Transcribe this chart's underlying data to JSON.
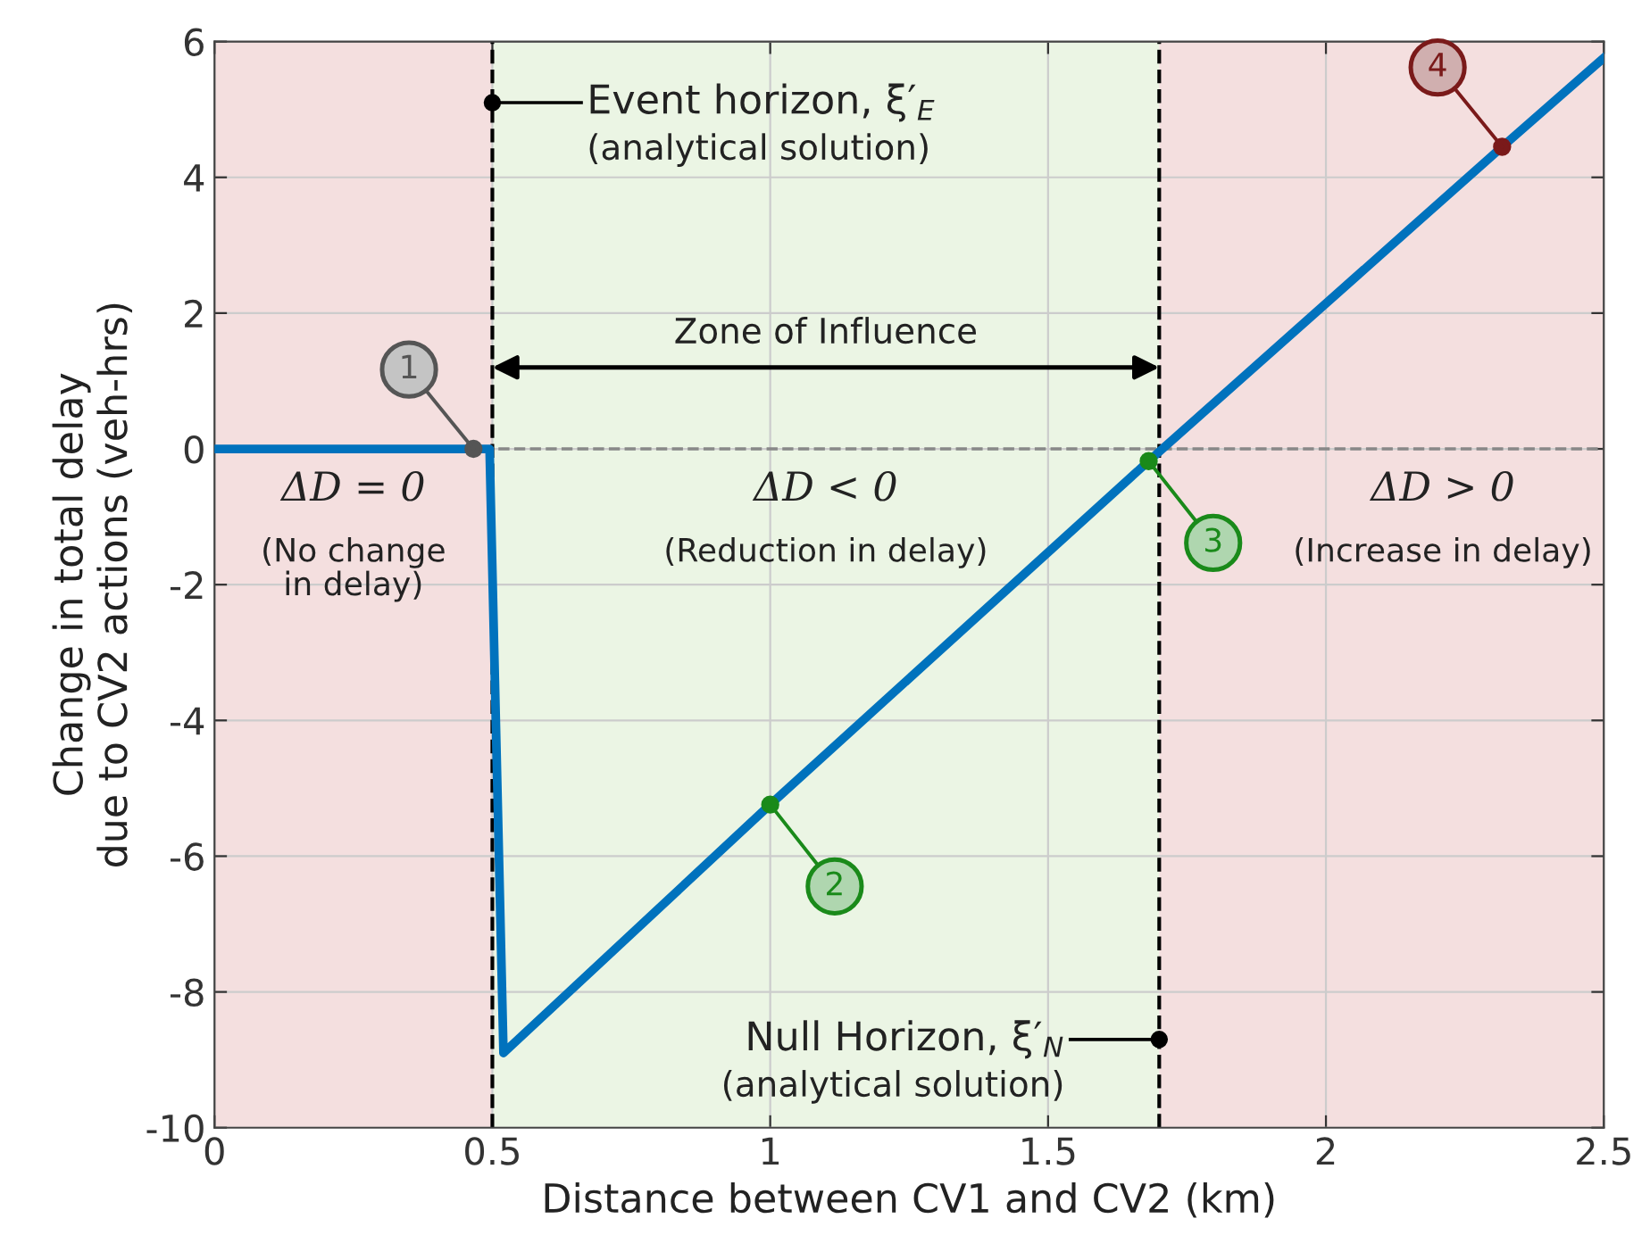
{
  "chart_data": {
    "type": "line",
    "xlabel": "Distance between CV1 and CV2 (km)",
    "ylabel": "Change in total delay\ndue to CV2 actions (veh-hrs)",
    "x": [
      0,
      0.49,
      0.495,
      0.52,
      1,
      1.681,
      2.317,
      2.5
    ],
    "series": [
      {
        "color": "#0072bd",
        "values": [
          0,
          0,
          0,
          -8.9,
          -5.24,
          -0.18,
          4.45,
          5.76
        ]
      },
      {
        "type": "scatter",
        "x": [
          0.466,
          1,
          1.681,
          2.317
        ],
        "values": [
          0,
          -5.24,
          -0.18,
          4.45
        ],
        "colors": [
          "#555555",
          "#1a8a1a",
          "#1a8a1a",
          "#7a1a1a"
        ]
      }
    ],
    "xlim": [
      0,
      2.5
    ],
    "ylim": [
      -10,
      6
    ],
    "xticks": [
      0,
      0.5,
      1,
      1.5,
      2,
      2.5
    ],
    "yticks": [
      -10,
      -8,
      -6,
      -4,
      -2,
      0,
      2,
      4,
      6
    ],
    "grid": true,
    "bands": [
      {
        "axis": "x",
        "from": 0,
        "to": 0.5,
        "color": "#f4dfdf",
        "label": "ΔD = 0\n(No change\nin delay)"
      },
      {
        "axis": "x",
        "from": 0.5,
        "to": 1.7,
        "color": "#ebf5e4",
        "label": "ΔD < 0\n(Reduction in delay)"
      },
      {
        "axis": "x",
        "from": 1.7,
        "to": 2.5,
        "color": "#f4dfdf",
        "label": "ΔD > 0\n(Increase in delay)"
      }
    ],
    "ref_lines": [
      {
        "axis": "x",
        "value": 0.5,
        "color": "#000000",
        "line_style": "dashed"
      },
      {
        "axis": "x",
        "value": 1.7,
        "color": "#000000",
        "line_style": "dashed"
      },
      {
        "axis": "y",
        "value": 0,
        "color": "#888888",
        "line_style": "dashed"
      }
    ],
    "annotations": [
      {
        "text": "Event horizon, ξ′$_{E}$\n(analytical solution)",
        "x": 0.5,
        "y": 5.1
      },
      {
        "text": "Null Horizon, ξ′$_{N}$\n(analytical solution)",
        "x": 1.7,
        "y": -8.7
      },
      "Zone of Influence",
      {
        "text": "1",
        "x": 0.466,
        "y": 0
      },
      {
        "text": "2",
        "x": 1,
        "y": -5.24
      },
      {
        "text": "3",
        "x": 1.681,
        "y": -0.18
      },
      {
        "text": "4",
        "x": 2.317,
        "y": 4.45
      }
    ]
  }
}
